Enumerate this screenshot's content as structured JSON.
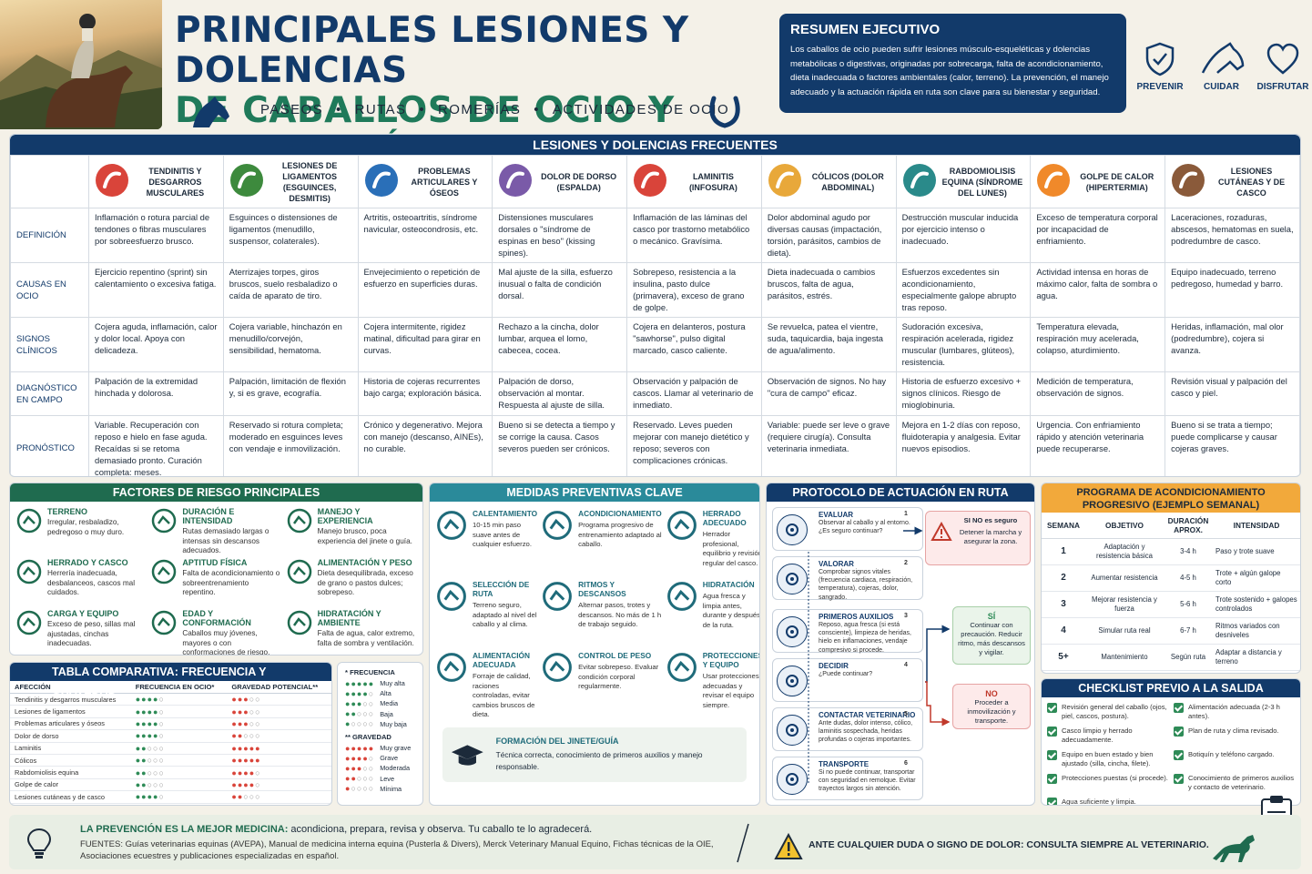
{
  "header": {
    "title_line1": "PRINCIPALES LESIONES Y DOLENCIAS",
    "title_line2": "DE CABALLOS DE OCIO Y PREVENCIÓN",
    "activities": [
      "PASEOS",
      "RUTAS",
      "ROMERÍAS",
      "ACTIVIDADES DE OCIO"
    ],
    "separator": "•"
  },
  "summary": {
    "title": "RESUMEN EJECUTIVO",
    "text": "Los caballos de ocio pueden sufrir lesiones músculo-esqueléticas y dolencias metabólicas o digestivas, originadas por sobrecarga, falta de acondicionamiento, dieta inadecuada o factores ambientales (calor, terreno). La prevención, el manejo adecuado y la actuación rápida en ruta son clave para su bienestar y seguridad."
  },
  "pillars": [
    {
      "label": "PREVENIR",
      "icon": "shield-check-icon"
    },
    {
      "label": "CUIDAR",
      "icon": "horse-head-icon"
    },
    {
      "label": "DISFRUTAR",
      "icon": "heart-icon"
    }
  ],
  "main_table": {
    "title": "LESIONES Y DOLENCIAS FRECUENTES",
    "columns": [
      {
        "label": "TENDINITIS Y DESGARROS MUSCULARES",
        "color": "#d9443a"
      },
      {
        "label": "LESIONES DE LIGAMENTOS (ESGUINCES, DESMITIS)",
        "color": "#3d8a3d"
      },
      {
        "label": "PROBLEMAS ARTICULARES Y ÓSEOS",
        "color": "#2a6fb8"
      },
      {
        "label": "DOLOR DE DORSO (ESPALDA)",
        "color": "#7a5aa8"
      },
      {
        "label": "LAMINITIS (INFOSURA)",
        "color": "#d9443a"
      },
      {
        "label": "CÓLICOS (DOLOR ABDOMINAL)",
        "color": "#e8a83a"
      },
      {
        "label": "RABDOMIOLISIS EQUINA (SÍNDROME DEL LUNES)",
        "color": "#2a8a8a"
      },
      {
        "label": "GOLPE DE CALOR (HIPERTERMIA)",
        "color": "#f0892a"
      },
      {
        "label": "LESIONES CUTÁNEAS Y DE CASCO",
        "color": "#8a5a3a"
      }
    ],
    "rows": [
      {
        "label": "DEFINICIÓN",
        "icon": "horse-icon",
        "cells": [
          "Inflamación o rotura parcial de tendones o fibras musculares por sobreesfuerzo brusco.",
          "Esguinces o distensiones de ligamentos (menudillo, suspensor, colaterales).",
          "Artritis, osteoartritis, síndrome navicular, osteocondrosis, etc.",
          "Distensiones musculares dorsales o \"síndrome de espinas en beso\" (kissing spines).",
          "Inflamación de las láminas del casco por trastorno metabólico o mecánico. Gravísima.",
          "Dolor abdominal agudo por diversas causas (impactación, torsión, parásitos, cambios de dieta).",
          "Destrucción muscular inducida por ejercicio intenso o inadecuado.",
          "Exceso de temperatura corporal por incapacidad de enfriamiento.",
          "Laceraciones, rozaduras, abscesos, hematomas en suela, podredumbre de casco."
        ]
      },
      {
        "label": "CAUSAS EN OCIO",
        "icon": "hourglass-icon",
        "cells": [
          "Ejercicio repentino (sprint) sin calentamiento o excesiva fatiga.",
          "Aterrizajes torpes, giros bruscos, suelo resbaladizo o caída de aparato de tiro.",
          "Envejecimiento o repetición de esfuerzo en superficies duras.",
          "Mal ajuste de la silla, esfuerzo inusual o falta de condición dorsal.",
          "Sobrepeso, resistencia a la insulina, pasto dulce (primavera), exceso de grano de golpe.",
          "Dieta inadecuada o cambios bruscos, falta de agua, parásitos, estrés.",
          "Esfuerzos excedentes sin acondicionamiento, especialmente galope abrupto tras reposo.",
          "Actividad intensa en horas de máximo calor, falta de sombra o agua.",
          "Equipo inadecuado, terreno pedregoso, humedad y barro."
        ]
      },
      {
        "label": "SIGNOS CLÍNICOS",
        "icon": "head-icon",
        "cells": [
          "Cojera aguda, inflamación, calor y dolor local. Apoya con delicadeza.",
          "Cojera variable, hinchazón en menudillo/corvejón, sensibilidad, hematoma.",
          "Cojera intermitente, rigidez matinal, dificultad para girar en curvas.",
          "Rechazo a la cincha, dolor lumbar, arquea el lomo, cabecea, cocea.",
          "Cojera en delanteros, postura \"sawhorse\", pulso digital marcado, casco caliente.",
          "Se revuelca, patea el vientre, suda, taquicardia, baja ingesta de agua/alimento.",
          "Sudoración excesiva, respiración acelerada, rigidez muscular (lumbares, glúteos), resistencia.",
          "Temperatura elevada, respiración muy acelerada, colapso, aturdimiento.",
          "Heridas, inflamación, mal olor (podredumbre), cojera si avanza."
        ]
      },
      {
        "label": "DIAGNÓSTICO EN CAMPO",
        "icon": "stethoscope-icon",
        "cells": [
          "Palpación de la extremidad hinchada y dolorosa.",
          "Palpación, limitación de flexión y, si es grave, ecografía.",
          "Historia de cojeras recurrentes bajo carga; exploración básica.",
          "Palpación de dorso, observación al montar. Respuesta al ajuste de silla.",
          "Observación y palpación de cascos. Llamar al veterinario de inmediato.",
          "Observación de signos. No hay \"cura de campo\" eficaz.",
          "Historia de esfuerzo excesivo + signos clínicos. Riesgo de mioglobinuria.",
          "Medición de temperatura, observación de signos.",
          "Revisión visual y palpación del casco y piel."
        ]
      },
      {
        "label": "PRONÓSTICO",
        "icon": "clock-icon",
        "cells": [
          "Variable. Recuperación con reposo e hielo en fase aguda. Recaídas si se retoma demasiado pronto. Curación completa: meses.",
          "Reservado si rotura completa; moderado en esguinces leves con vendaje e inmovilización.",
          "Crónico y degenerativo. Mejora con manejo (descanso, AINEs), no curable.",
          "Bueno si se detecta a tiempo y se corrige la causa. Casos severos pueden ser crónicos.",
          "Reservado. Leves pueden mejorar con manejo dietético y reposo; severos con complicaciones crónicas.",
          "Variable: puede ser leve o grave (requiere cirugía). Consulta veterinaria inmediata.",
          "Mejora en 1-2 días con reposo, fluidoterapia y analgesia. Evitar nuevos episodios.",
          "Urgencia. Con enfriamiento rápido y atención veterinaria puede recuperarse.",
          "Bueno si se trata a tiempo; puede complicarse y causar cojeras graves."
        ]
      }
    ]
  },
  "risk": {
    "title": "FACTORES DE RIESGO PRINCIPALES",
    "items": [
      {
        "title": "TERRENO",
        "text": "Irregular, resbaladizo, pedregoso o muy duro.",
        "icon": "mountain-icon"
      },
      {
        "title": "DURACIÓN E INTENSIDAD",
        "text": "Rutas demasiado largas o intensas sin descansos adecuados.",
        "icon": "clock-icon"
      },
      {
        "title": "MANEJO Y EXPERIENCIA",
        "text": "Manejo brusco, poca experiencia del jinete o guía.",
        "icon": "person-icon"
      },
      {
        "title": "HERRADO Y CASCO",
        "text": "Herrería inadecuada, desbalanceos, cascos mal cuidados.",
        "icon": "horseshoe-icon"
      },
      {
        "title": "APTITUD FÍSICA",
        "text": "Falta de acondicionamiento o sobreentrenamiento repentino.",
        "icon": "heart-pulse-icon"
      },
      {
        "title": "ALIMENTACIÓN Y PESO",
        "text": "Dieta desequilibrada, exceso de grano o pastos dulces; sobrepeso.",
        "icon": "scale-icon"
      },
      {
        "title": "CARGA Y EQUIPO",
        "text": "Exceso de peso, sillas mal ajustadas, cinchas inadecuadas.",
        "icon": "saddle-icon"
      },
      {
        "title": "EDAD Y CONFORMACIÓN",
        "text": "Caballos muy jóvenes, mayores o con conformaciones de riesgo.",
        "icon": "horse-head-icon"
      },
      {
        "title": "HIDRATACIÓN Y AMBIENTE",
        "text": "Falta de agua, calor extremo, falta de sombra y ventilación.",
        "icon": "drop-icon"
      }
    ]
  },
  "compare": {
    "title": "TABLA COMPARATIVA: FRECUENCIA Y GRAVEDAD",
    "headers": [
      "AFECCIÓN",
      "FRECUENCIA EN OCIO*",
      "GRAVEDAD POTENCIAL**"
    ],
    "rows": [
      {
        "name": "Tendinitis y desgarros musculares",
        "freq": 4,
        "sev": 3
      },
      {
        "name": "Lesiones de ligamentos",
        "freq": 4,
        "sev": 3
      },
      {
        "name": "Problemas articulares y óseos",
        "freq": 4,
        "sev": 3
      },
      {
        "name": "Dolor de dorso",
        "freq": 4,
        "sev": 2
      },
      {
        "name": "Laminitis",
        "freq": 2,
        "sev": 5
      },
      {
        "name": "Cólicos",
        "freq": 2,
        "sev": 5
      },
      {
        "name": "Rabdomiolisis equina",
        "freq": 2,
        "sev": 4
      },
      {
        "name": "Golpe de calor",
        "freq": 2,
        "sev": 4
      },
      {
        "name": "Lesiones cutáneas y de casco",
        "freq": 4,
        "sev": 2
      }
    ],
    "freq_title": "* FRECUENCIA",
    "freq_levels": [
      "Muy alta",
      "Alta",
      "Media",
      "Baja",
      "Muy baja"
    ],
    "sev_title": "** GRAVEDAD",
    "sev_levels": [
      "Muy grave",
      "Grave",
      "Moderada",
      "Leve",
      "Mínima"
    ],
    "freq_color": "#2e8b57",
    "sev_color": "#d9443a"
  },
  "prevention": {
    "title": "MEDIDAS PREVENTIVAS CLAVE",
    "items": [
      {
        "title": "CALENTAMIENTO",
        "text": "10-15 min paso suave antes de cualquier esfuerzo.",
        "icon": "horse-icon"
      },
      {
        "title": "ACONDICIONAMIENTO",
        "text": "Programa progresivo de entrenamiento adaptado al caballo.",
        "icon": "bar-chart-icon"
      },
      {
        "title": "HERRADO ADECUADO",
        "text": "Herrador profesional, equilibrio y revisión regular del casco.",
        "icon": "horseshoe-icon"
      },
      {
        "title": "SELECCIÓN DE RUTA",
        "text": "Terreno seguro, adaptado al nivel del caballo y al clima.",
        "icon": "map-icon"
      },
      {
        "title": "RITMOS Y DESCANSOS",
        "text": "Alternar pasos, trotes y descansos. No más de 1 h de trabajo seguido.",
        "icon": "stopwatch-icon"
      },
      {
        "title": "HIDRATACIÓN",
        "text": "Agua fresca y limpia antes, durante y después de la ruta.",
        "icon": "drop-icon"
      },
      {
        "title": "ALIMENTACIÓN ADECUADA",
        "text": "Forraje de calidad, raciones controladas, evitar cambios bruscos de dieta.",
        "icon": "hay-bale-icon"
      },
      {
        "title": "CONTROL DE PESO",
        "text": "Evitar sobrepeso. Evaluar condición corporal regularmente.",
        "icon": "scale-icon"
      },
      {
        "title": "PROTECCIONES Y EQUIPO",
        "text": "Usar protecciones adecuadas y revisar el equipo siempre.",
        "icon": "boot-icon"
      }
    ],
    "rider_title": "FORMACIÓN DEL JINETE/GUÍA",
    "rider_text": "Técnica correcta, conocimiento de primeros auxilios y manejo responsable."
  },
  "protocol": {
    "title": "PROTOCOLO DE ACTUACIÓN EN RUTA (EMERGENCIA)",
    "steps": [
      {
        "num": "1",
        "title": "EVALUAR",
        "text": "Observar al caballo y al entorno. ¿Es seguro continuar?",
        "icon": "eye-icon"
      },
      {
        "num": "2",
        "title": "VALORAR",
        "text": "Comprobar signos vitales (frecuencia cardiaca, respiración, temperatura), cojeras, dolor, sangrado.",
        "icon": "heart-pulse-icon"
      },
      {
        "num": "3",
        "title": "PRIMEROS AUXILIOS",
        "text": "Reposo, agua fresca (si está consciente), limpieza de heridas, hielo en inflamaciones, vendaje compresivo si procede.",
        "icon": "first-aid-icon"
      },
      {
        "num": "4",
        "title": "DECIDIR",
        "text": "¿Puede continuar?",
        "icon": "decision-icon"
      },
      {
        "num": "5",
        "title": "CONTACTAR VETERINARIO",
        "text": "Ante dudas, dolor intenso, cólico, laminitis sospechada, heridas profundas o cojeras importantes.",
        "icon": "phone-icon"
      },
      {
        "num": "6",
        "title": "TRANSPORTE",
        "text": "Si no puede continuar, transportar con seguridad en remolque. Evitar trayectos largos sin atención.",
        "icon": "trailer-icon"
      }
    ],
    "unsafe_title": "SI NO es seguro",
    "unsafe_text": "Detener la marcha y asegurar la zona.",
    "yes_title": "SÍ",
    "yes_text": "Continuar con precaución. Reducir ritmo, más descansos y vigilar.",
    "no_title": "NO",
    "no_text": "Proceder a inmovilización y transporte."
  },
  "program": {
    "title": "PROGRAMA DE ACONDICIONAMIENTO PROGRESIVO (EJEMPLO SEMANAL)",
    "headers": [
      "SEMANA",
      "OBJETIVO",
      "DURACIÓN APROX.",
      "INTENSIDAD"
    ],
    "rows": [
      [
        "1",
        "Adaptación y resistencia básica",
        "3-4 h",
        "Paso y trote suave"
      ],
      [
        "2",
        "Aumentar resistencia",
        "4-5 h",
        "Trote + algún galope corto"
      ],
      [
        "3",
        "Mejorar resistencia y fuerza",
        "5-6 h",
        "Trote sostenido + galopes controlados"
      ],
      [
        "4",
        "Simular ruta real",
        "6-7 h",
        "Ritmos variados con desniveles"
      ],
      [
        "5+",
        "Mantenimiento",
        "Según ruta",
        "Adaptar a distancia y terreno"
      ]
    ]
  },
  "checklist": {
    "title": "CHECKLIST PREVIO A LA SALIDA",
    "items": [
      "Revisión general del caballo (ojos, piel, cascos, postura).",
      "Alimentación adecuada (2-3 h antes).",
      "Casco limpio y herrado adecuadamente.",
      "Plan de ruta y clima revisado.",
      "Equipo en buen estado y bien ajustado (silla, cincha, filete).",
      "Botiquín y teléfono cargado.",
      "Protecciones puestas (si procede).",
      "Conocimiento de primeros auxilios y contacto de veterinario.",
      "Agua suficiente y limpia."
    ]
  },
  "footer": {
    "motto_bold": "LA PREVENCIÓN ES LA MEJOR MEDICINA:",
    "motto": " acondiciona, prepara, revisa y observa. Tu caballo te lo agradecerá.",
    "sources": "FUENTES: Guías veterinarias equinas (AVEPA), Manual de medicina interna equina (Pusterla & Divers), Merck Veterinary Manual Equino, Fichas técnicas de la OIE, Asociaciones ecuestres y publicaciones especializadas en español.",
    "warning": "ANTE CUALQUIER DUDA O SIGNO DE DOLOR: CONSULTA SIEMPRE AL VETERINARIO."
  }
}
